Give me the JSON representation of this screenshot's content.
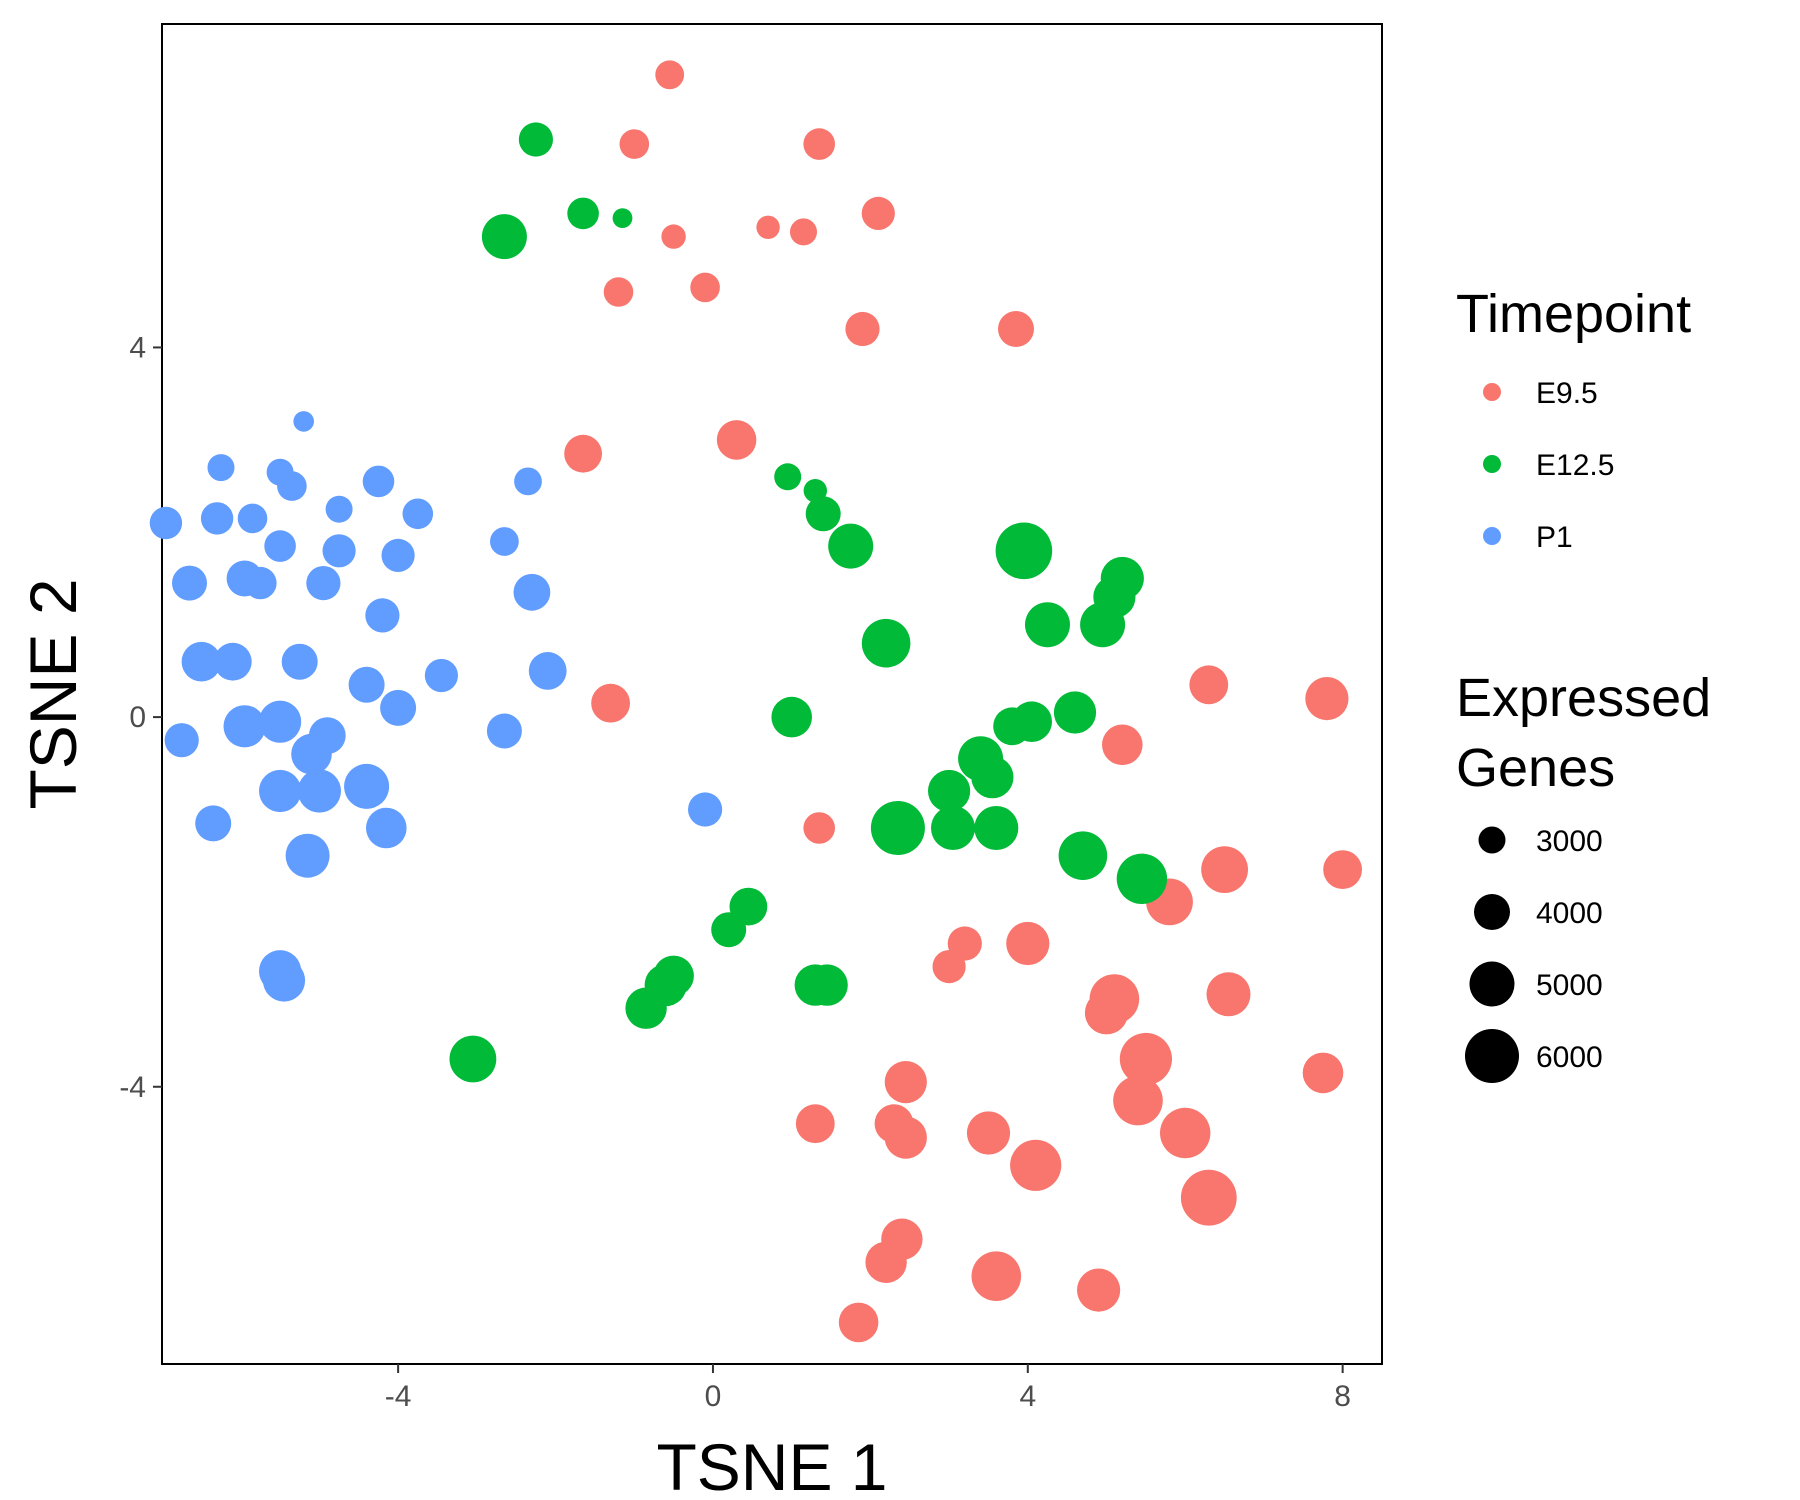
{
  "chart_data": {
    "type": "scatter",
    "title": "",
    "xlabel": "TSNE 1",
    "ylabel": "TSNE 2",
    "xlim": [
      -7.0,
      8.5
    ],
    "ylim": [
      -7.0,
      7.5
    ],
    "x_ticks": [
      -4,
      0,
      4,
      8
    ],
    "y_ticks": [
      -4,
      0,
      4
    ],
    "grid": false,
    "legend_placement": "right",
    "color_legend": {
      "title": "Timepoint",
      "entries": [
        {
          "name": "E9.5",
          "color": "#F8766D"
        },
        {
          "name": "E12.5",
          "color": "#00BA38"
        },
        {
          "name": "P1",
          "color": "#619CFF"
        }
      ]
    },
    "size_legend": {
      "title_lines": [
        "Expressed",
        "Genes"
      ],
      "entries": [
        3000,
        4000,
        5000,
        6000
      ]
    },
    "series": [
      {
        "name": "E9.5",
        "color": "#F8766D",
        "points": [
          [
            -0.55,
            6.95,
            3200
          ],
          [
            -1.0,
            6.2,
            3300
          ],
          [
            1.35,
            6.2,
            3500
          ],
          [
            -0.5,
            5.2,
            2700
          ],
          [
            0.7,
            5.3,
            2600
          ],
          [
            1.15,
            5.25,
            3000
          ],
          [
            2.1,
            5.45,
            3700
          ],
          [
            -1.2,
            4.6,
            3300
          ],
          [
            -0.1,
            4.65,
            3300
          ],
          [
            1.9,
            4.2,
            3800
          ],
          [
            3.85,
            4.2,
            4000
          ],
          [
            0.3,
            3.0,
            4400
          ],
          [
            -1.65,
            2.85,
            4200
          ],
          [
            -1.3,
            0.15,
            4300
          ],
          [
            6.3,
            0.35,
            4300
          ],
          [
            7.8,
            0.2,
            4800
          ],
          [
            5.2,
            -0.3,
            4500
          ],
          [
            1.35,
            -1.2,
            3500
          ],
          [
            6.5,
            -1.65,
            5200
          ],
          [
            8.0,
            -1.65,
            4300
          ],
          [
            5.8,
            -2.0,
            5200
          ],
          [
            3.2,
            -2.45,
            3800
          ],
          [
            4.0,
            -2.45,
            4800
          ],
          [
            3.0,
            -2.7,
            3700
          ],
          [
            6.55,
            -3.0,
            4900
          ],
          [
            5.1,
            -3.05,
            5500
          ],
          [
            5.0,
            -3.2,
            4800
          ],
          [
            5.5,
            -3.7,
            5800
          ],
          [
            7.75,
            -3.85,
            4500
          ],
          [
            2.45,
            -3.95,
            4700
          ],
          [
            1.3,
            -4.4,
            4300
          ],
          [
            2.3,
            -4.4,
            4300
          ],
          [
            2.45,
            -4.55,
            4700
          ],
          [
            3.5,
            -4.5,
            4800
          ],
          [
            5.4,
            -4.15,
            5500
          ],
          [
            6.0,
            -4.5,
            5600
          ],
          [
            4.1,
            -4.85,
            5700
          ],
          [
            6.3,
            -5.2,
            6200
          ],
          [
            2.4,
            -5.65,
            4600
          ],
          [
            2.2,
            -5.9,
            4600
          ],
          [
            3.6,
            -6.05,
            5500
          ],
          [
            4.9,
            -6.2,
            4800
          ],
          [
            1.85,
            -6.55,
            4400
          ]
        ]
      },
      {
        "name": "E12.5",
        "color": "#00BA38",
        "points": [
          [
            -2.25,
            6.25,
            3800
          ],
          [
            -1.65,
            5.45,
            3500
          ],
          [
            -1.15,
            5.4,
            2200
          ],
          [
            -2.65,
            5.2,
            5000
          ],
          [
            0.95,
            2.6,
            3000
          ],
          [
            1.3,
            2.45,
            2600
          ],
          [
            1.4,
            2.2,
            3900
          ],
          [
            1.75,
            1.85,
            5000
          ],
          [
            3.95,
            1.8,
            6300
          ],
          [
            5.2,
            1.5,
            4800
          ],
          [
            5.1,
            1.3,
            4700
          ],
          [
            4.25,
            1.0,
            5000
          ],
          [
            4.95,
            1.0,
            5000
          ],
          [
            2.2,
            0.8,
            5400
          ],
          [
            1.0,
            0.0,
            4500
          ],
          [
            4.6,
            0.05,
            4700
          ],
          [
            4.05,
            -0.05,
            4500
          ],
          [
            3.8,
            -0.1,
            4200
          ],
          [
            3.4,
            -0.45,
            5000
          ],
          [
            3.55,
            -0.65,
            4700
          ],
          [
            3.0,
            -0.8,
            4700
          ],
          [
            3.6,
            -1.2,
            4900
          ],
          [
            3.05,
            -1.2,
            4900
          ],
          [
            2.35,
            -1.2,
            6000
          ],
          [
            4.7,
            -1.5,
            5400
          ],
          [
            5.45,
            -1.75,
            5600
          ],
          [
            0.45,
            -2.05,
            4200
          ],
          [
            0.2,
            -2.3,
            3900
          ],
          [
            -0.5,
            -2.8,
            4500
          ],
          [
            -0.6,
            -2.9,
            4700
          ],
          [
            -0.85,
            -3.15,
            4600
          ],
          [
            1.3,
            -2.9,
            4600
          ],
          [
            1.45,
            -2.9,
            4600
          ],
          [
            -3.05,
            -3.7,
            5200
          ]
        ]
      },
      {
        "name": "P1",
        "color": "#619CFF",
        "points": [
          [
            -5.2,
            3.2,
            2300
          ],
          [
            -6.25,
            2.7,
            3000
          ],
          [
            -5.5,
            2.65,
            3000
          ],
          [
            -5.35,
            2.5,
            3300
          ],
          [
            -4.25,
            2.55,
            3500
          ],
          [
            -2.35,
            2.55,
            3100
          ],
          [
            -4.75,
            2.25,
            3000
          ],
          [
            -3.75,
            2.2,
            3400
          ],
          [
            -6.95,
            2.1,
            3600
          ],
          [
            -6.3,
            2.15,
            3600
          ],
          [
            -5.85,
            2.15,
            3300
          ],
          [
            -2.65,
            1.9,
            3200
          ],
          [
            -5.5,
            1.85,
            3500
          ],
          [
            -4.75,
            1.8,
            3700
          ],
          [
            -4.0,
            1.75,
            3700
          ],
          [
            -6.65,
            1.45,
            3900
          ],
          [
            -5.95,
            1.5,
            4000
          ],
          [
            -5.75,
            1.45,
            3600
          ],
          [
            -4.95,
            1.45,
            3800
          ],
          [
            -2.3,
            1.35,
            4100
          ],
          [
            -4.2,
            1.1,
            3800
          ],
          [
            -6.5,
            0.6,
            4400
          ],
          [
            -6.1,
            0.6,
            4200
          ],
          [
            -5.25,
            0.6,
            4000
          ],
          [
            -2.1,
            0.5,
            4200
          ],
          [
            -3.45,
            0.45,
            3700
          ],
          [
            -4.4,
            0.35,
            4000
          ],
          [
            -4.0,
            0.1,
            4000
          ],
          [
            -6.75,
            -0.25,
            3800
          ],
          [
            -5.95,
            -0.1,
            4700
          ],
          [
            -5.5,
            -0.05,
            4700
          ],
          [
            -5.1,
            -0.4,
            4500
          ],
          [
            -4.9,
            -0.2,
            4100
          ],
          [
            -2.65,
            -0.15,
            3900
          ],
          [
            -5.5,
            -0.8,
            4700
          ],
          [
            -5.0,
            -0.8,
            4800
          ],
          [
            -4.4,
            -0.75,
            5000
          ],
          [
            -6.35,
            -1.15,
            4000
          ],
          [
            -4.15,
            -1.2,
            4500
          ],
          [
            -5.15,
            -1.5,
            4900
          ],
          [
            -0.1,
            -1.0,
            3800
          ],
          [
            -5.5,
            -2.75,
            4700
          ],
          [
            -5.45,
            -2.85,
            4700
          ]
        ]
      }
    ]
  }
}
